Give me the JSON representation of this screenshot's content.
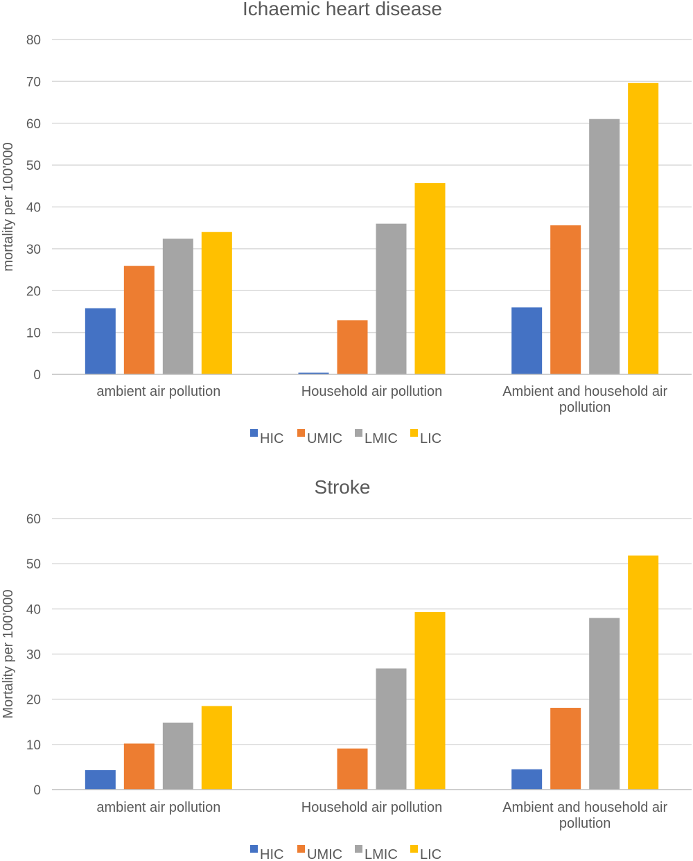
{
  "chart_data": [
    {
      "type": "bar",
      "title": "Ichaemic heart disease",
      "ylabel": "mortality per 100'000",
      "xlabel": "",
      "ylim": [
        0,
        80
      ],
      "yticks": [
        0,
        10,
        20,
        30,
        40,
        50,
        60,
        70,
        80
      ],
      "categories": [
        [
          "ambient air pollution"
        ],
        [
          "Household air pollution"
        ],
        [
          "Ambient and household air",
          "pollution"
        ]
      ],
      "series": [
        {
          "name": "HIC",
          "values": [
            15.8,
            0.4,
            16.0
          ]
        },
        {
          "name": "UMIC",
          "values": [
            25.9,
            12.9,
            35.6
          ]
        },
        {
          "name": "LMIC",
          "values": [
            32.4,
            36.0,
            61.0
          ]
        },
        {
          "name": "LIC",
          "values": [
            34.0,
            45.7,
            69.6
          ]
        }
      ],
      "grid": true,
      "legend_position": "bottom"
    },
    {
      "type": "bar",
      "title": "Stroke",
      "ylabel": "Mortality per 100'000",
      "xlabel": "",
      "ylim": [
        0,
        60
      ],
      "yticks": [
        0,
        10,
        20,
        30,
        40,
        50,
        60
      ],
      "categories": [
        [
          "ambient air pollution"
        ],
        [
          "Household air pollution"
        ],
        [
          "Ambient and household air",
          "pollution"
        ]
      ],
      "series": [
        {
          "name": "HIC",
          "values": [
            4.3,
            0,
            4.5
          ]
        },
        {
          "name": "UMIC",
          "values": [
            10.2,
            9.1,
            18.1
          ]
        },
        {
          "name": "LMIC",
          "values": [
            14.8,
            26.8,
            38.0
          ]
        },
        {
          "name": "LIC",
          "values": [
            18.5,
            39.3,
            51.8
          ]
        }
      ],
      "grid": true,
      "legend_position": "bottom"
    }
  ],
  "colors": {
    "HIC": "#4472c4",
    "UMIC": "#ed7d31",
    "LMIC": "#a5a5a5",
    "LIC": "#ffc000"
  }
}
